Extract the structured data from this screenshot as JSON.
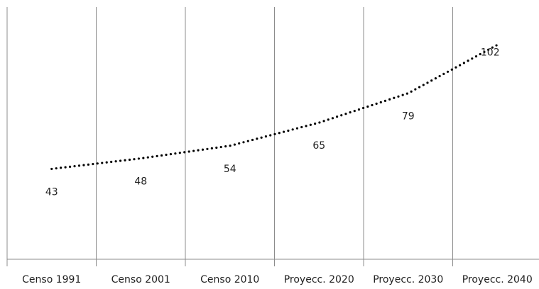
{
  "chart_data": {
    "type": "line",
    "categories": [
      "Censo 1991",
      "Censo 2001",
      "Censo 2010",
      "Proyecc. 2020",
      "Proyecc. 2030",
      "Proyecc. 2040"
    ],
    "values": [
      43,
      48,
      54,
      65,
      79,
      102
    ],
    "color": "#000000",
    "ylim": [
      0,
      120
    ]
  }
}
